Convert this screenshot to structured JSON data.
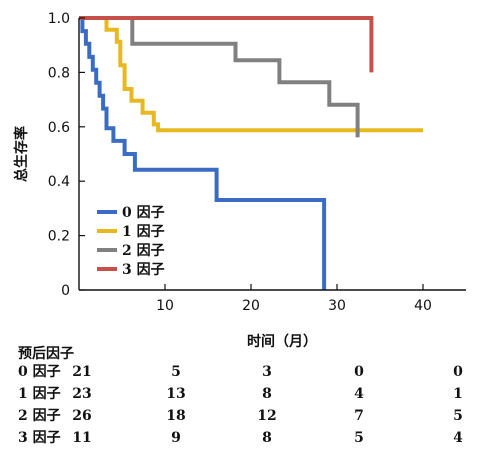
{
  "chart_data": {
    "type": "line",
    "subtype": "kaplan-meier",
    "xlabel": "时间（月）",
    "ylabel": "总生存率",
    "xlim": [
      0,
      45
    ],
    "ylim": [
      0,
      1.0
    ],
    "x_ticks": [
      10,
      20,
      30,
      40
    ],
    "x_tick_labels": [
      "10",
      "20",
      "30",
      "40"
    ],
    "y_ticks": [
      0,
      0.2,
      0.4,
      0.6,
      0.8,
      1.0
    ],
    "y_tick_labels": [
      "0",
      "0.2",
      "0.4",
      "0.6",
      "0.8",
      "1.0"
    ],
    "grid": false,
    "legend_position": "lower-left",
    "series": [
      {
        "name": "0 因子",
        "color": "#3a6cc4",
        "x": [
          0,
          0.4,
          0.4,
          0.8,
          0.8,
          1.2,
          1.2,
          1.6,
          1.6,
          2.0,
          2.0,
          2.4,
          2.4,
          2.8,
          2.8,
          3.2,
          3.2,
          4.0,
          4.0,
          5.3,
          5.3,
          6.5,
          6.5,
          16.0,
          16.0,
          28.5,
          28.5
        ],
        "y": [
          1.0,
          1.0,
          0.952,
          0.952,
          0.905,
          0.905,
          0.857,
          0.857,
          0.81,
          0.81,
          0.762,
          0.762,
          0.714,
          0.714,
          0.667,
          0.667,
          0.595,
          0.595,
          0.548,
          0.548,
          0.5,
          0.5,
          0.442,
          0.442,
          0.331,
          0.331,
          0.0
        ]
      },
      {
        "name": "1 因子",
        "color": "#e8b820",
        "x": [
          0,
          3.2,
          3.2,
          4.4,
          4.4,
          4.8,
          4.8,
          5.3,
          5.3,
          6.1,
          6.1,
          7.4,
          7.4,
          8.7,
          8.7,
          9.2,
          9.2,
          18.2,
          40.0
        ],
        "y": [
          1.0,
          1.0,
          0.957,
          0.957,
          0.913,
          0.913,
          0.826,
          0.826,
          0.739,
          0.739,
          0.696,
          0.696,
          0.652,
          0.652,
          0.609,
          0.609,
          0.587,
          0.587,
          0.587
        ]
      },
      {
        "name": "2 因子",
        "color": "#808080",
        "x": [
          0,
          6.2,
          6.2,
          18.2,
          18.2,
          23.3,
          23.3,
          29.1,
          29.1,
          32.4,
          32.4
        ],
        "y": [
          1.0,
          1.0,
          0.905,
          0.905,
          0.845,
          0.845,
          0.764,
          0.764,
          0.681,
          0.681,
          0.561
        ]
      },
      {
        "name": "3 因子",
        "color": "#c8504a",
        "x": [
          0,
          34.0,
          34.0
        ],
        "y": [
          1.0,
          1.0,
          0.8
        ]
      }
    ],
    "risk_table": {
      "title": "预后因子",
      "at_times": [
        0,
        10,
        20,
        30,
        40
      ],
      "rows": [
        {
          "label": "0 因子",
          "values": [
            "21",
            "5",
            "3",
            "0",
            "0"
          ]
        },
        {
          "label": "1 因子",
          "values": [
            "23",
            "13",
            "8",
            "4",
            "1"
          ]
        },
        {
          "label": "2 因子",
          "values": [
            "26",
            "18",
            "12",
            "7",
            "5"
          ]
        },
        {
          "label": "3 因子",
          "values": [
            "11",
            "9",
            "8",
            "5",
            "4"
          ]
        }
      ]
    }
  }
}
